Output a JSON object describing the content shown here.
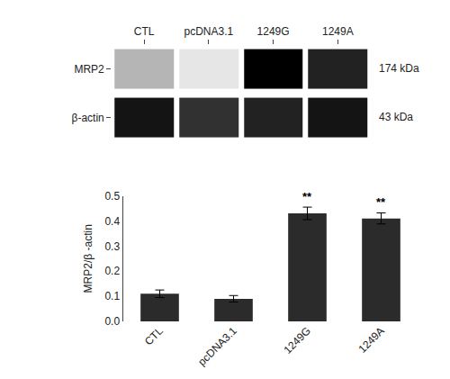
{
  "chart_data": [
    {
      "type": "heatmap",
      "x": [
        "CTL",
        "pcDNA3.1",
        "1249G",
        "1249A"
      ],
      "y": [
        "MRP2",
        "β-actin"
      ],
      "cells": [
        [
          0.55,
          0.45,
          0.92,
          0.85
        ],
        [
          0.88,
          0.82,
          0.85,
          0.88
        ]
      ],
      "annotations": [
        {
          "y": "MRP2",
          "text": "174 kDa"
        },
        {
          "y": "β-actin",
          "text": "43 kDa"
        }
      ],
      "grid": false
    },
    {
      "type": "bar",
      "categories": [
        "CTL",
        "pcDNA3.1",
        "1249G",
        "1249A"
      ],
      "values": [
        0.11,
        0.09,
        0.43,
        0.41
      ],
      "errors": [
        0.015,
        0.013,
        0.025,
        0.022
      ],
      "color": "#2b2b2b",
      "ylabel": "MRP2/β -actin",
      "ylim": [
        0,
        0.5
      ],
      "yticks": [
        {
          "value": 0,
          "label": "0.0"
        },
        0.1,
        0.2,
        0.3,
        0.4,
        0.5
      ],
      "annotations": [
        {
          "x": "1249G",
          "text": "**"
        },
        {
          "x": "1249A",
          "text": "**"
        }
      ],
      "grid": false
    }
  ]
}
